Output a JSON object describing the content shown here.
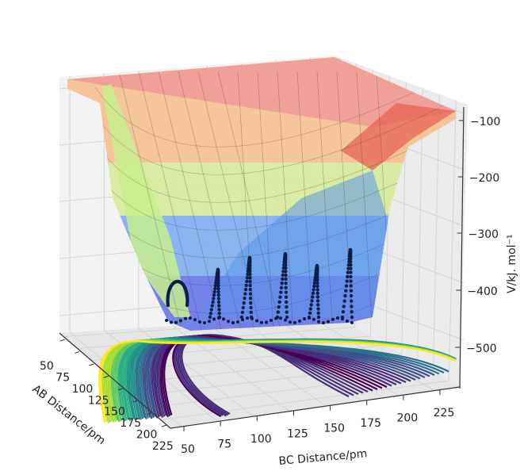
{
  "chart_data": {
    "type": "surface3d",
    "title": "",
    "xlabel": "AB Distance/pm",
    "ylabel": "BC Distance/pm",
    "zlabel": "V/kJ. mol⁻¹",
    "x_ticks": [
      "50",
      "75",
      "100",
      "125",
      "150",
      "175",
      "200",
      "225"
    ],
    "y_ticks": [
      "50",
      "75",
      "100",
      "125",
      "150",
      "175",
      "200",
      "225"
    ],
    "z_ticks": [
      "−100",
      "−200",
      "−300",
      "−400",
      "−500"
    ],
    "xlim": [
      50,
      240
    ],
    "ylim": [
      50,
      240
    ],
    "zlim": [
      -550,
      -60
    ],
    "surface_colormap": "jet",
    "contour_colormap": "viridis",
    "trajectory_color": "#0b1f4a",
    "colors": {
      "pane": "#f2f2f2",
      "grid": "#d4d4d4",
      "axis": "#333333"
    }
  }
}
